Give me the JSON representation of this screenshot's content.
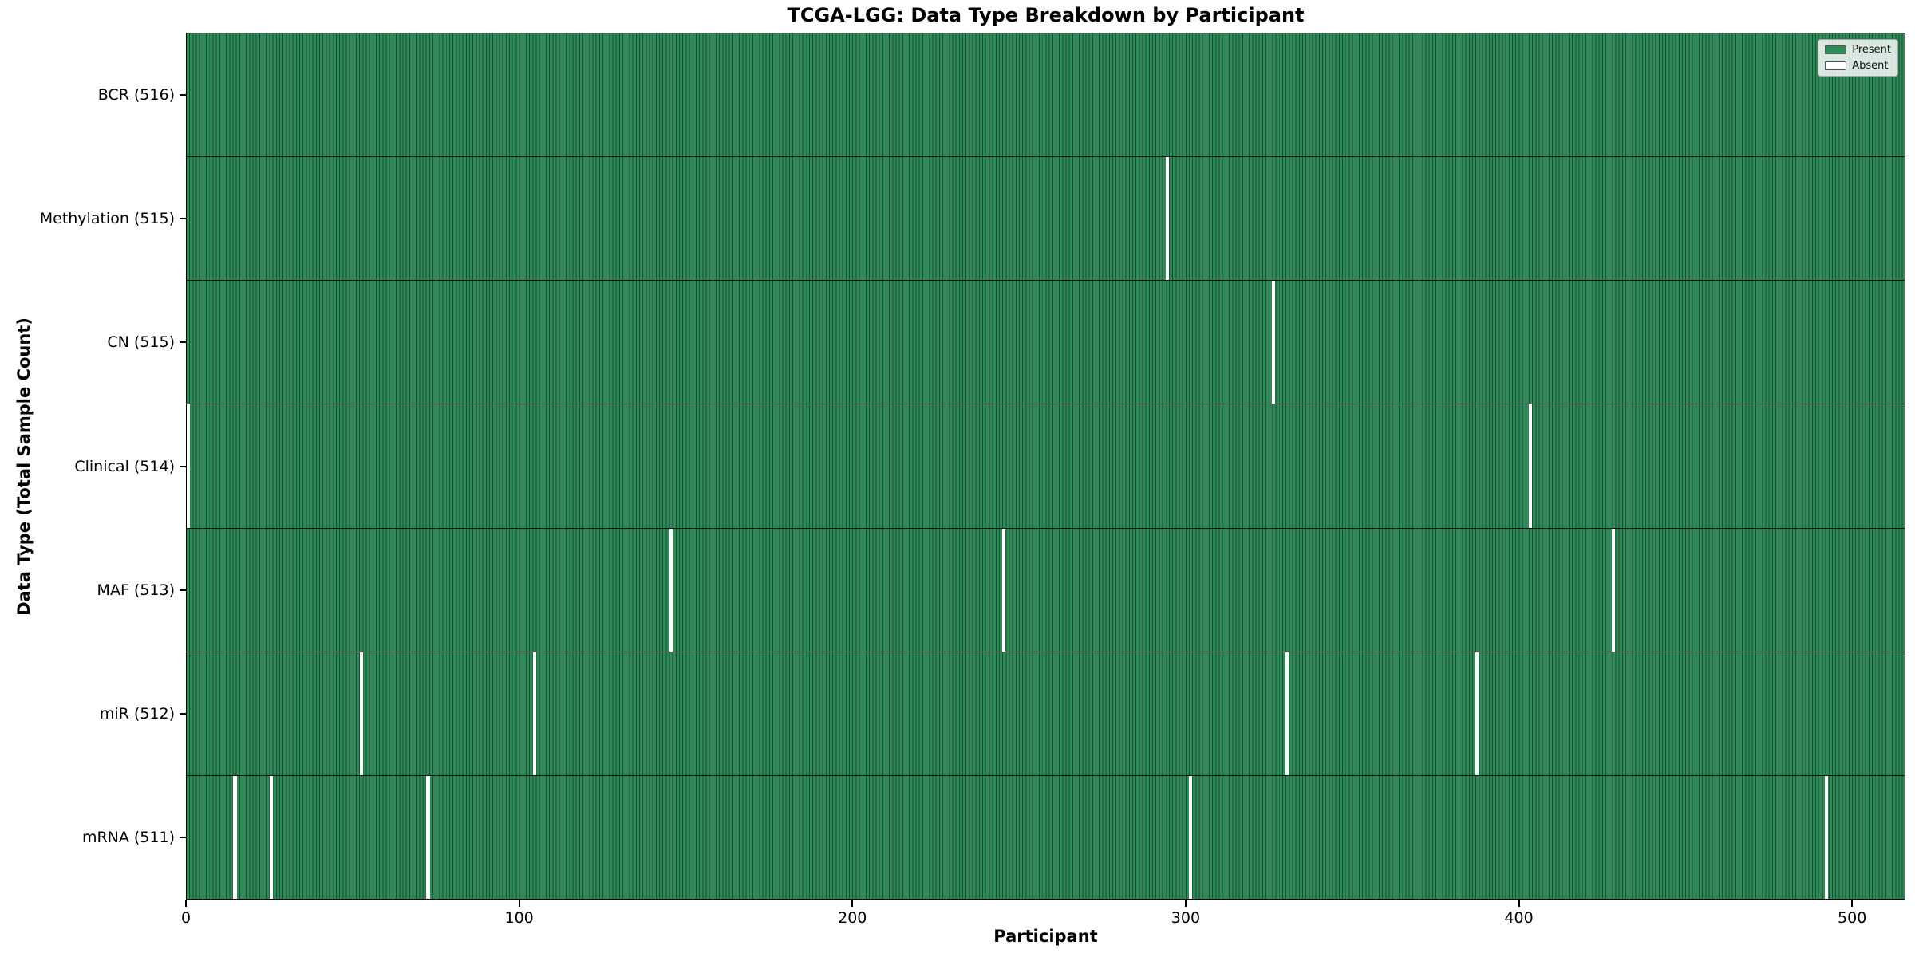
{
  "chart_data": {
    "type": "heatmap",
    "title": "TCGA-LGG: Data Type Breakdown by Participant",
    "xlabel": "Participant",
    "ylabel": "Data Type (Total Sample Count)",
    "n_participants": 516,
    "x_range": [
      0,
      516
    ],
    "x_ticks": [
      0,
      100,
      200,
      300,
      400,
      500
    ],
    "grid": false,
    "legend_position": "upper-right",
    "legend": {
      "entries": [
        {
          "label": "Present",
          "color": "#2e8b57"
        },
        {
          "label": "Absent",
          "color": "#ffffff"
        }
      ]
    },
    "rows": [
      {
        "label": "BCR (516)",
        "data_type": "BCR",
        "total": 516,
        "absent_participants": []
      },
      {
        "label": "Methylation (515)",
        "data_type": "Methylation",
        "total": 515,
        "absent_participants": [
          294
        ]
      },
      {
        "label": "CN (515)",
        "data_type": "CN",
        "total": 515,
        "absent_participants": [
          326
        ]
      },
      {
        "label": "Clinical (514)",
        "data_type": "Clinical",
        "total": 514,
        "absent_participants": [
          0,
          403
        ]
      },
      {
        "label": "MAF (513)",
        "data_type": "MAF",
        "total": 513,
        "absent_participants": [
          145,
          245,
          428
        ]
      },
      {
        "label": "miR (512)",
        "data_type": "miR",
        "total": 512,
        "absent_participants": [
          52,
          104,
          330,
          387
        ]
      },
      {
        "label": "mRNA (511)",
        "data_type": "mRNA",
        "total": 511,
        "absent_participants": [
          14,
          25,
          72,
          301,
          492
        ]
      }
    ],
    "colors": {
      "present": "#2e8b57",
      "absent": "#ffffff",
      "column_edge": "#1d4a34",
      "row_divider": "#0d0d0d",
      "plot_border": "#000000"
    }
  }
}
